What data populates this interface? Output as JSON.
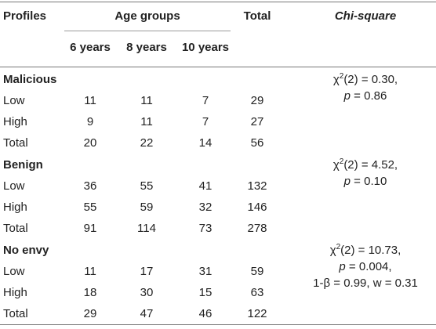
{
  "headers": {
    "profiles": "Profiles",
    "age_groups": "Age groups",
    "total": "Total",
    "chi_square": "Chi-square",
    "age_6": "6 years",
    "age_8": "8 years",
    "age_10": "10 years"
  },
  "sections": [
    {
      "name": "Malicious",
      "rows": [
        {
          "label": "Low",
          "a6": "11",
          "a8": "11",
          "a10": "7",
          "total": "29"
        },
        {
          "label": "High",
          "a6": "9",
          "a8": "11",
          "a10": "7",
          "total": "27"
        },
        {
          "label": "Total",
          "a6": "20",
          "a8": "22",
          "a10": "14",
          "total": "56"
        }
      ],
      "chi": {
        "symbol": "χ",
        "exp": "2",
        "stat": "(2) = 0.30,",
        "p_label": "p",
        "p_value": " = 0.86"
      }
    },
    {
      "name": "Benign",
      "rows": [
        {
          "label": "Low",
          "a6": "36",
          "a8": "55",
          "a10": "41",
          "total": "132"
        },
        {
          "label": "High",
          "a6": "55",
          "a8": "59",
          "a10": "32",
          "total": "146"
        },
        {
          "label": "Total",
          "a6": "91",
          "a8": "114",
          "a10": "73",
          "total": "278"
        }
      ],
      "chi": {
        "symbol": "χ",
        "exp": "2",
        "stat": "(2) = 4.52,",
        "p_label": "p",
        "p_value": " = 0.10"
      }
    },
    {
      "name": "No envy",
      "rows": [
        {
          "label": "Low",
          "a6": "11",
          "a8": "17",
          "a10": "31",
          "total": "59"
        },
        {
          "label": "High",
          "a6": "18",
          "a8": "30",
          "a10": "15",
          "total": "63"
        },
        {
          "label": "Total",
          "a6": "29",
          "a8": "47",
          "a10": "46",
          "total": "122"
        }
      ],
      "chi": {
        "symbol": "χ",
        "exp": "2",
        "stat": "(2) = 10.73,",
        "p_label": "p",
        "p_value": " = 0.004,",
        "extra": "1-β = 0.99, w = 0.31"
      }
    }
  ]
}
